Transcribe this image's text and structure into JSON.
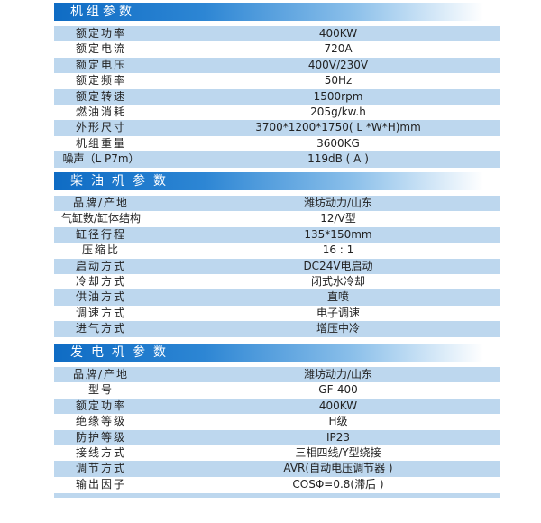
{
  "sections": [
    {
      "title": "机组参数",
      "rows": [
        [
          "额定功率",
          "400KW"
        ],
        [
          "额定电流",
          "720A"
        ],
        [
          "额定电压",
          "400V/230V"
        ],
        [
          "额定频率",
          "50Hz"
        ],
        [
          "额定转速",
          "1500rpm"
        ],
        [
          "燃油消耗",
          "205g/kw.h"
        ],
        [
          "外形尺寸",
          "3700*1200*1750( L *W*H)mm"
        ],
        [
          "机组重量",
          "3600KG"
        ],
        [
          "噪声（L P7m）",
          "119dB ( A )"
        ]
      ]
    },
    {
      "title": "柴油机参数",
      "rows": [
        [
          "品牌/产地",
          "潍坊动力/山东"
        ],
        [
          "气缸数/缸体结构",
          "12/V型"
        ],
        [
          "缸径行程",
          "135*150mm"
        ],
        [
          "压缩比",
          "16 : 1"
        ],
        [
          "启动方式",
          "DC24V电启动"
        ],
        [
          "冷却方式",
          "闭式水冷却"
        ],
        [
          "供油方式",
          "直喷"
        ],
        [
          "调速方式",
          "电子调速"
        ],
        [
          "进气方式",
          "增压中冷"
        ]
      ]
    },
    {
      "title": "发电机参数",
      "rows": [
        [
          "品牌/产地",
          "潍坊动力/山东"
        ],
        [
          "型号",
          "GF-400"
        ],
        [
          "额定功率",
          "400KW"
        ],
        [
          "绝缘等级",
          "H级"
        ],
        [
          "防护等级",
          "IP23"
        ],
        [
          "接线方式",
          "三相四线/Y型绕接"
        ],
        [
          "调节方式",
          "AVR(自动电压调节器 )"
        ],
        [
          "输出因子",
          "COSΦ=0.8(滞后 )"
        ]
      ]
    }
  ],
  "colors": {
    "header_start": "#0f6cc4",
    "row_blue": "#bdd7ee"
  }
}
